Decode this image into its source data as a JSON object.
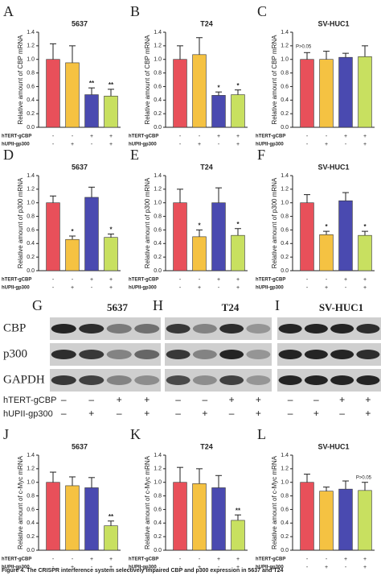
{
  "chart_data": [
    {
      "type": "bar",
      "panel": "A",
      "title": "5637",
      "ylabel": "Relative amount of CBP mRNA",
      "ylim": [
        0,
        1.4
      ],
      "yticks": [
        {
          "value": 0,
          "label": "0.0"
        },
        0.2,
        0.4,
        0.6,
        0.8,
        {
          "value": 1,
          "label": "1.0"
        },
        1.2,
        1.4
      ],
      "colors": [
        "#e8505a",
        "#f5c242",
        "#4a4ab0",
        "#c8e060"
      ],
      "values": [
        1.0,
        0.95,
        0.48,
        0.46
      ],
      "errors": [
        0.23,
        0.25,
        0.1,
        0.1
      ],
      "significance": [
        null,
        null,
        "**",
        "**"
      ],
      "conditions": [
        {
          "name": "hTERT-gCBP",
          "labels": [
            "-",
            "-",
            "+",
            "+"
          ]
        },
        {
          "name": "hUPII-gp300",
          "labels": [
            "-",
            "+",
            "-",
            "+"
          ]
        }
      ]
    },
    {
      "type": "bar",
      "panel": "B",
      "title": "T24",
      "ylabel": "Relative amount of CBP mRNA",
      "ylim": [
        0,
        1.4
      ],
      "yticks": [
        {
          "value": 0,
          "label": "0.0"
        },
        0.2,
        0.4,
        0.6,
        0.8,
        {
          "value": 1,
          "label": "1.0"
        },
        1.2,
        1.4
      ],
      "colors": [
        "#e8505a",
        "#f5c242",
        "#4a4ab0",
        "#c8e060"
      ],
      "values": [
        1.0,
        1.07,
        0.47,
        0.48
      ],
      "errors": [
        0.2,
        0.25,
        0.05,
        0.07
      ],
      "significance": [
        null,
        null,
        "*",
        "*"
      ],
      "conditions": [
        {
          "name": "hTERT-gCBP",
          "labels": [
            "-",
            "-",
            "+",
            "+"
          ]
        },
        {
          "name": "hUPII-gp300",
          "labels": [
            "-",
            "+",
            "-",
            "+"
          ]
        }
      ]
    },
    {
      "type": "bar",
      "panel": "C",
      "title": "SV-HUC1",
      "ylabel": "Relative amount of CBP mRNA",
      "ylim": [
        0,
        1.4
      ],
      "yticks": [
        {
          "value": 0,
          "label": "0.0"
        },
        0.2,
        0.4,
        0.6,
        0.8,
        {
          "value": 1,
          "label": "1.0"
        },
        1.2,
        1.4
      ],
      "colors": [
        "#e8505a",
        "#f5c242",
        "#4a4ab0",
        "#c8e060"
      ],
      "values": [
        1.0,
        1.0,
        1.03,
        1.04
      ],
      "errors": [
        0.1,
        0.12,
        0.06,
        0.16
      ],
      "significance": [
        null,
        null,
        null,
        null
      ],
      "annotation": "P>0.05",
      "annotation_corner": "upper left",
      "conditions": [
        {
          "name": "hTERT-gCBP",
          "labels": [
            "-",
            "-",
            "+",
            "+"
          ]
        },
        {
          "name": "hUPII-gp300",
          "labels": [
            "-",
            "+",
            "-",
            "+"
          ]
        }
      ]
    },
    {
      "type": "bar",
      "panel": "D",
      "title": "5637",
      "ylabel": "Relative amount of p300 mRNA",
      "ylim": [
        0,
        1.4
      ],
      "yticks": [
        {
          "value": 0,
          "label": "0.0"
        },
        0.2,
        0.4,
        0.6,
        0.8,
        {
          "value": 1,
          "label": "1.0"
        },
        1.2,
        1.4
      ],
      "colors": [
        "#e8505a",
        "#f5c242",
        "#4a4ab0",
        "#c8e060"
      ],
      "values": [
        1.0,
        0.46,
        1.08,
        0.49
      ],
      "errors": [
        0.1,
        0.05,
        0.15,
        0.05
      ],
      "significance": [
        null,
        "*",
        null,
        "*"
      ],
      "conditions": [
        {
          "name": "hTERT-gCBP",
          "labels": [
            "-",
            "-",
            "+",
            "+"
          ]
        },
        {
          "name": "hUPII-gp300",
          "labels": [
            "-",
            "+",
            "-",
            "+"
          ]
        }
      ]
    },
    {
      "type": "bar",
      "panel": "E",
      "title": "T24",
      "ylabel": "Relative amount of p300 mRNA",
      "ylim": [
        0,
        1.4
      ],
      "yticks": [
        {
          "value": 0,
          "label": "0.0"
        },
        0.2,
        0.4,
        0.6,
        0.8,
        {
          "value": 1,
          "label": "1.0"
        },
        1.2,
        1.4
      ],
      "colors": [
        "#e8505a",
        "#f5c242",
        "#4a4ab0",
        "#c8e060"
      ],
      "values": [
        1.0,
        0.5,
        1.0,
        0.52
      ],
      "errors": [
        0.2,
        0.1,
        0.22,
        0.1
      ],
      "significance": [
        null,
        "*",
        null,
        "*"
      ],
      "conditions": [
        {
          "name": "hTERT-gCBP",
          "labels": [
            "-",
            "-",
            "+",
            "+"
          ]
        },
        {
          "name": "hUPII-gp300",
          "labels": [
            "-",
            "+",
            "-",
            "+"
          ]
        }
      ]
    },
    {
      "type": "bar",
      "panel": "F",
      "title": "SV-HUC1",
      "ylabel": "Relative amount of p300 mRNA",
      "ylim": [
        0,
        1.4
      ],
      "yticks": [
        {
          "value": 0,
          "label": "0.0"
        },
        0.2,
        0.4,
        0.6,
        0.8,
        {
          "value": 1,
          "label": "1.0"
        },
        1.2,
        1.4
      ],
      "colors": [
        "#e8505a",
        "#f5c242",
        "#4a4ab0",
        "#c8e060"
      ],
      "values": [
        1.0,
        0.53,
        1.03,
        0.52
      ],
      "errors": [
        0.12,
        0.05,
        0.12,
        0.06
      ],
      "significance": [
        null,
        "*",
        null,
        "*"
      ],
      "conditions": [
        {
          "name": "hTERT-gCBP",
          "labels": [
            "-",
            "-",
            "+",
            "+"
          ]
        },
        {
          "name": "hUPII-gp300",
          "labels": [
            "-",
            "+",
            "-",
            "+"
          ]
        }
      ]
    },
    {
      "type": "bar",
      "panel": "J",
      "title": "5637",
      "ylabel": "Relative amount of c-Myc mRNA",
      "ylim": [
        0,
        1.4
      ],
      "yticks": [
        {
          "value": 0,
          "label": "0.0"
        },
        0.2,
        0.4,
        0.6,
        0.8,
        {
          "value": 1,
          "label": "1.0"
        },
        1.2,
        1.4
      ],
      "colors": [
        "#e8505a",
        "#f5c242",
        "#4a4ab0",
        "#c8e060"
      ],
      "values": [
        1.0,
        0.95,
        0.92,
        0.36
      ],
      "errors": [
        0.15,
        0.13,
        0.15,
        0.07
      ],
      "significance": [
        null,
        null,
        null,
        "**"
      ],
      "conditions": [
        {
          "name": "hTERT-gCBP",
          "labels": [
            "-",
            "-",
            "+",
            "+"
          ]
        },
        {
          "name": "hUPII-gp300",
          "labels": [
            "-",
            "+",
            "-",
            "+"
          ]
        }
      ]
    },
    {
      "type": "bar",
      "panel": "K",
      "title": "T24",
      "ylabel": "Relative amount of c-Myc mRNA",
      "ylim": [
        0,
        1.4
      ],
      "yticks": [
        {
          "value": 0,
          "label": "0.0"
        },
        0.2,
        0.4,
        0.6,
        0.8,
        {
          "value": 1,
          "label": "1.0"
        },
        1.2,
        1.4
      ],
      "colors": [
        "#e8505a",
        "#f5c242",
        "#4a4ab0",
        "#c8e060"
      ],
      "values": [
        1.0,
        0.98,
        0.92,
        0.44
      ],
      "errors": [
        0.22,
        0.22,
        0.18,
        0.08
      ],
      "significance": [
        null,
        null,
        null,
        "**"
      ],
      "conditions": [
        {
          "name": "hTERT-gCBP",
          "labels": [
            "-",
            "-",
            "+",
            "+"
          ]
        },
        {
          "name": "hUPII-gp300",
          "labels": [
            "-",
            "+",
            "-",
            "+"
          ]
        }
      ]
    },
    {
      "type": "bar",
      "panel": "L",
      "title": "SV-HUC1",
      "ylabel": "Relative amount of c-Myc mRNA",
      "ylim": [
        0,
        1.4
      ],
      "yticks": [
        {
          "value": 0,
          "label": "0.0"
        },
        0.2,
        0.4,
        0.6,
        0.8,
        {
          "value": 1,
          "label": "1.0"
        },
        1.2,
        1.4
      ],
      "colors": [
        "#e8505a",
        "#f5c242",
        "#4a4ab0",
        "#c8e060"
      ],
      "values": [
        1.0,
        0.87,
        0.9,
        0.88
      ],
      "errors": [
        0.12,
        0.06,
        0.12,
        0.12
      ],
      "significance": [
        null,
        null,
        null,
        null
      ],
      "annotation": "P>0.05",
      "annotation_corner": "upper right",
      "conditions": [
        {
          "name": "hTERT-gCBP",
          "labels": [
            "-",
            "-",
            "+",
            "+"
          ]
        },
        {
          "name": "hUPII-gp300",
          "labels": [
            "-",
            "+",
            "-",
            "+"
          ]
        }
      ]
    }
  ],
  "blot": {
    "panels": [
      {
        "letter": "G",
        "title": "5637"
      },
      {
        "letter": "H",
        "title": "T24"
      },
      {
        "letter": "I",
        "title": "SV-HUC1"
      }
    ],
    "rows": [
      "CBP",
      "p300",
      "GAPDH"
    ],
    "conditions": [
      {
        "name": "hTERT-gCBP",
        "labels": [
          "–",
          "–",
          "+",
          "+"
        ]
      },
      {
        "name": "hUPII-gp300",
        "labels": [
          "–",
          "+",
          "–",
          "+"
        ]
      }
    ]
  },
  "caption": "Figure 4. The CRISPR interference system selectively impaired CBP and p300 expression in 5637 and T24"
}
